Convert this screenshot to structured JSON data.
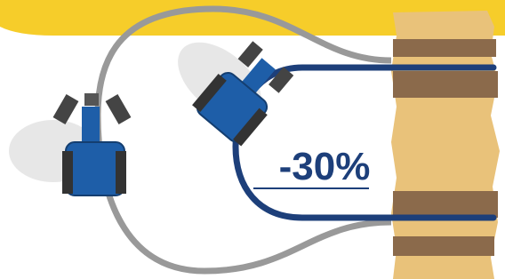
{
  "label": "-30%"
}
